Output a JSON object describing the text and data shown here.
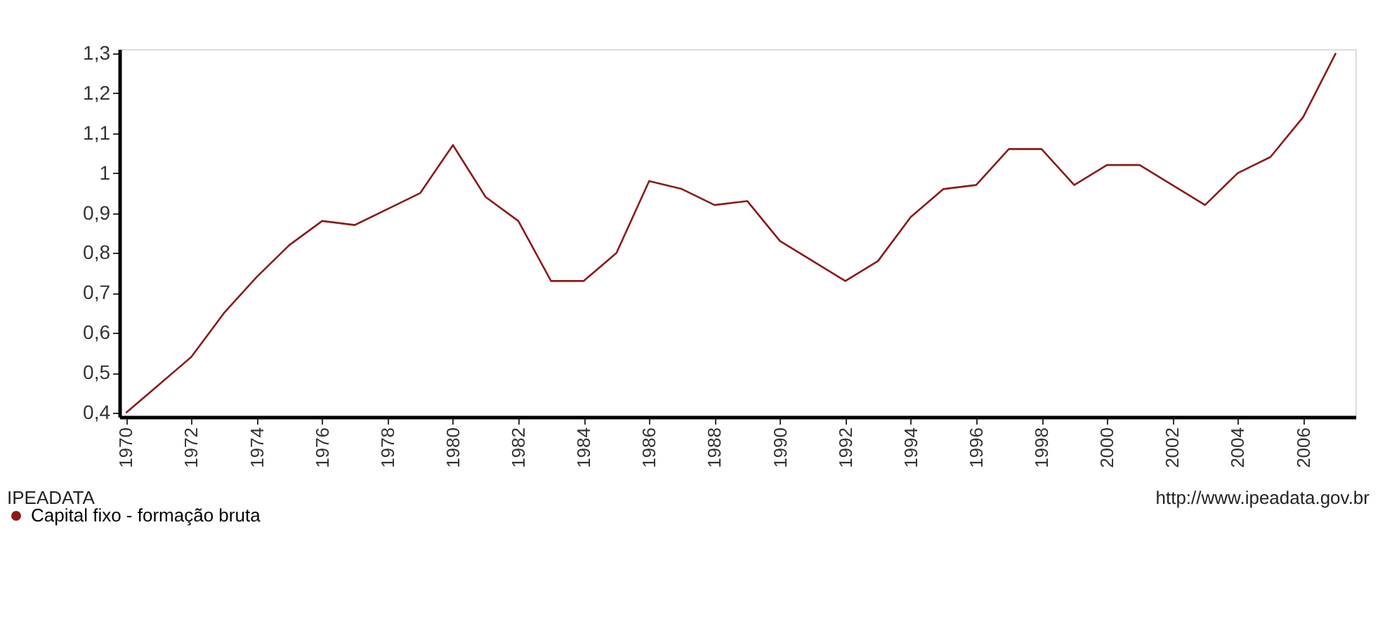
{
  "chart_data": {
    "type": "line",
    "x": [
      1970,
      1971,
      1972,
      1973,
      1974,
      1975,
      1976,
      1977,
      1978,
      1979,
      1980,
      1981,
      1982,
      1983,
      1984,
      1985,
      1986,
      1987,
      1988,
      1989,
      1990,
      1991,
      1992,
      1993,
      1994,
      1995,
      1996,
      1997,
      1998,
      1999,
      2000,
      2001,
      2002,
      2003,
      2004,
      2005,
      2006,
      2007
    ],
    "series": [
      {
        "name": "Capital fixo - formação bruta",
        "color": "#8b1a1a",
        "values": [
          0.4,
          0.47,
          0.54,
          0.65,
          0.74,
          0.82,
          0.88,
          0.87,
          0.91,
          0.95,
          1.07,
          0.94,
          0.88,
          0.73,
          0.73,
          0.8,
          0.98,
          0.96,
          0.92,
          0.93,
          0.83,
          0.78,
          0.73,
          0.78,
          0.89,
          0.96,
          0.97,
          1.06,
          1.06,
          0.97,
          1.02,
          1.02,
          0.97,
          0.92,
          1.0,
          1.04,
          1.14,
          1.3
        ]
      }
    ],
    "xlim": [
      1969.8,
      2007.6
    ],
    "xticks": [
      1970,
      1972,
      1974,
      1976,
      1978,
      1980,
      1982,
      1984,
      1986,
      1988,
      1990,
      1992,
      1994,
      1996,
      1998,
      2000,
      2002,
      2004,
      2006
    ],
    "ylim": [
      0.39,
      1.31
    ],
    "yticks": [
      {
        "value": 0.4,
        "label": "0,4"
      },
      {
        "value": 0.5,
        "label": "0,5"
      },
      {
        "value": 0.6,
        "label": "0,6"
      },
      {
        "value": 0.7,
        "label": "0,7"
      },
      {
        "value": 0.8,
        "label": "0,8"
      },
      {
        "value": 0.9,
        "label": "0,9"
      },
      1,
      {
        "value": 1.1,
        "label": "1,1"
      },
      {
        "value": 1.2,
        "label": "1,2"
      },
      {
        "value": 1.3,
        "label": "1,3"
      }
    ],
    "grid": false,
    "legend": "bottom left",
    "marker": "none",
    "line_style": "solid",
    "annotations": [
      "IPEADATA",
      "http://www.ipeadata.gov.br"
    ]
  }
}
